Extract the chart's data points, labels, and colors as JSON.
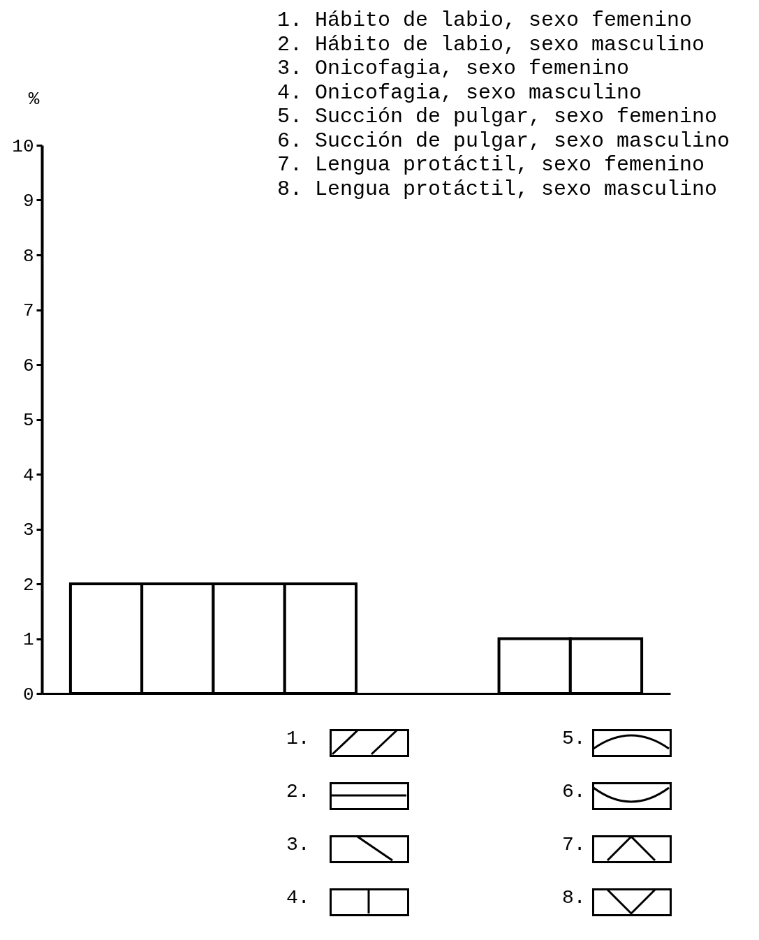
{
  "chart_data": {
    "type": "bar",
    "ylabel": "%",
    "categories": [
      null,
      null,
      null,
      null,
      null,
      null,
      null,
      null
    ],
    "values": [
      2,
      2,
      2,
      2,
      0,
      0,
      1,
      1
    ],
    "color": "#ffffff",
    "ylim": [
      0,
      10
    ],
    "yticks": [
      0,
      1,
      2,
      3,
      4,
      5,
      6,
      7,
      8,
      9,
      10
    ],
    "grid": false,
    "annotations": [
      "1. Hábito de labio, sexo femenino",
      "2. Hábito de labio, sexo masculino",
      "3. Onicofagia, sexo femenino",
      "4. Onicofagia, sexo masculino",
      "5. Succión de pulgar, sexo femenino",
      "6. Succión de pulgar, sexo masculino",
      "7. Lengua protáctil, sexo femenino",
      "8. Lengua protáctil, sexo masculino",
      "1.",
      "2.",
      "3.",
      "4.",
      "5.",
      "6.",
      "7.",
      "8."
    ]
  }
}
